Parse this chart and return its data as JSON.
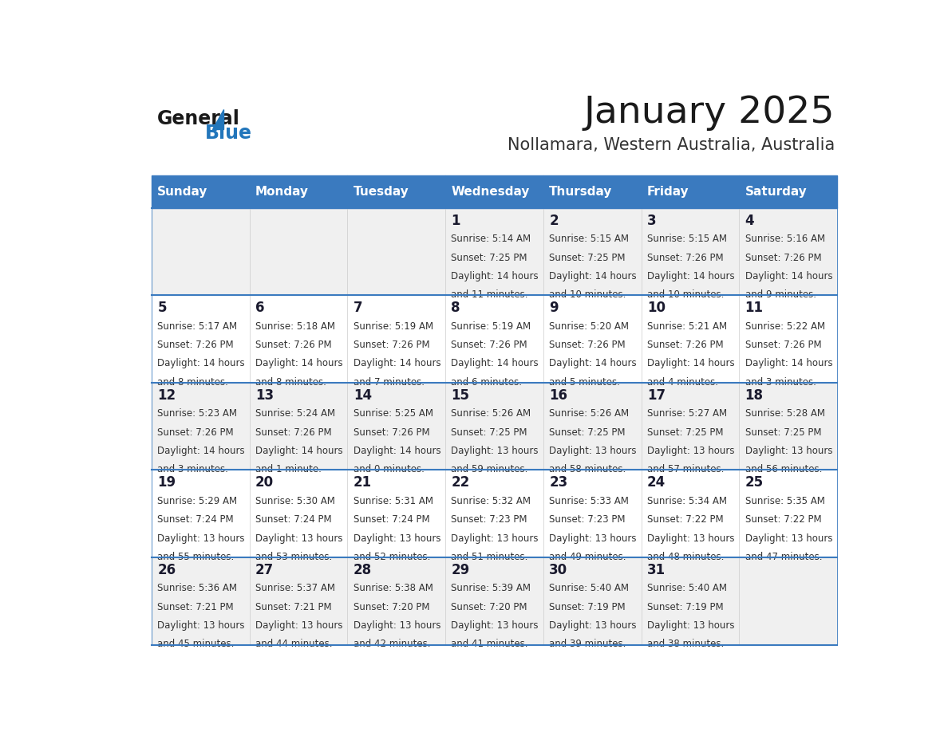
{
  "title": "January 2025",
  "subtitle": "Nollamara, Western Australia, Australia",
  "days_of_week": [
    "Sunday",
    "Monday",
    "Tuesday",
    "Wednesday",
    "Thursday",
    "Friday",
    "Saturday"
  ],
  "header_bg": "#3a7abf",
  "header_text_color": "#ffffff",
  "row_bg_odd": "#f0f0f0",
  "row_bg_even": "#ffffff",
  "cell_text_color": "#333333",
  "day_num_color": "#1a1a2e",
  "divider_color": "#3a7abf",
  "logo_color": "#2276bb",
  "calendar_data": [
    [
      null,
      null,
      null,
      {
        "day": 1,
        "sunrise": "5:14 AM",
        "sunset": "7:25 PM",
        "daylight_h": "14 hours",
        "daylight_m": "11 minutes"
      },
      {
        "day": 2,
        "sunrise": "5:15 AM",
        "sunset": "7:25 PM",
        "daylight_h": "14 hours",
        "daylight_m": "10 minutes"
      },
      {
        "day": 3,
        "sunrise": "5:15 AM",
        "sunset": "7:26 PM",
        "daylight_h": "14 hours",
        "daylight_m": "10 minutes"
      },
      {
        "day": 4,
        "sunrise": "5:16 AM",
        "sunset": "7:26 PM",
        "daylight_h": "14 hours",
        "daylight_m": "9 minutes"
      }
    ],
    [
      {
        "day": 5,
        "sunrise": "5:17 AM",
        "sunset": "7:26 PM",
        "daylight_h": "14 hours",
        "daylight_m": "8 minutes"
      },
      {
        "day": 6,
        "sunrise": "5:18 AM",
        "sunset": "7:26 PM",
        "daylight_h": "14 hours",
        "daylight_m": "8 minutes"
      },
      {
        "day": 7,
        "sunrise": "5:19 AM",
        "sunset": "7:26 PM",
        "daylight_h": "14 hours",
        "daylight_m": "7 minutes"
      },
      {
        "day": 8,
        "sunrise": "5:19 AM",
        "sunset": "7:26 PM",
        "daylight_h": "14 hours",
        "daylight_m": "6 minutes"
      },
      {
        "day": 9,
        "sunrise": "5:20 AM",
        "sunset": "7:26 PM",
        "daylight_h": "14 hours",
        "daylight_m": "5 minutes"
      },
      {
        "day": 10,
        "sunrise": "5:21 AM",
        "sunset": "7:26 PM",
        "daylight_h": "14 hours",
        "daylight_m": "4 minutes"
      },
      {
        "day": 11,
        "sunrise": "5:22 AM",
        "sunset": "7:26 PM",
        "daylight_h": "14 hours",
        "daylight_m": "3 minutes"
      }
    ],
    [
      {
        "day": 12,
        "sunrise": "5:23 AM",
        "sunset": "7:26 PM",
        "daylight_h": "14 hours",
        "daylight_m": "3 minutes"
      },
      {
        "day": 13,
        "sunrise": "5:24 AM",
        "sunset": "7:26 PM",
        "daylight_h": "14 hours",
        "daylight_m": "1 minute"
      },
      {
        "day": 14,
        "sunrise": "5:25 AM",
        "sunset": "7:26 PM",
        "daylight_h": "14 hours",
        "daylight_m": "0 minutes"
      },
      {
        "day": 15,
        "sunrise": "5:26 AM",
        "sunset": "7:25 PM",
        "daylight_h": "13 hours",
        "daylight_m": "59 minutes"
      },
      {
        "day": 16,
        "sunrise": "5:26 AM",
        "sunset": "7:25 PM",
        "daylight_h": "13 hours",
        "daylight_m": "58 minutes"
      },
      {
        "day": 17,
        "sunrise": "5:27 AM",
        "sunset": "7:25 PM",
        "daylight_h": "13 hours",
        "daylight_m": "57 minutes"
      },
      {
        "day": 18,
        "sunrise": "5:28 AM",
        "sunset": "7:25 PM",
        "daylight_h": "13 hours",
        "daylight_m": "56 minutes"
      }
    ],
    [
      {
        "day": 19,
        "sunrise": "5:29 AM",
        "sunset": "7:24 PM",
        "daylight_h": "13 hours",
        "daylight_m": "55 minutes"
      },
      {
        "day": 20,
        "sunrise": "5:30 AM",
        "sunset": "7:24 PM",
        "daylight_h": "13 hours",
        "daylight_m": "53 minutes"
      },
      {
        "day": 21,
        "sunrise": "5:31 AM",
        "sunset": "7:24 PM",
        "daylight_h": "13 hours",
        "daylight_m": "52 minutes"
      },
      {
        "day": 22,
        "sunrise": "5:32 AM",
        "sunset": "7:23 PM",
        "daylight_h": "13 hours",
        "daylight_m": "51 minutes"
      },
      {
        "day": 23,
        "sunrise": "5:33 AM",
        "sunset": "7:23 PM",
        "daylight_h": "13 hours",
        "daylight_m": "49 minutes"
      },
      {
        "day": 24,
        "sunrise": "5:34 AM",
        "sunset": "7:22 PM",
        "daylight_h": "13 hours",
        "daylight_m": "48 minutes"
      },
      {
        "day": 25,
        "sunrise": "5:35 AM",
        "sunset": "7:22 PM",
        "daylight_h": "13 hours",
        "daylight_m": "47 minutes"
      }
    ],
    [
      {
        "day": 26,
        "sunrise": "5:36 AM",
        "sunset": "7:21 PM",
        "daylight_h": "13 hours",
        "daylight_m": "45 minutes"
      },
      {
        "day": 27,
        "sunrise": "5:37 AM",
        "sunset": "7:21 PM",
        "daylight_h": "13 hours",
        "daylight_m": "44 minutes"
      },
      {
        "day": 28,
        "sunrise": "5:38 AM",
        "sunset": "7:20 PM",
        "daylight_h": "13 hours",
        "daylight_m": "42 minutes"
      },
      {
        "day": 29,
        "sunrise": "5:39 AM",
        "sunset": "7:20 PM",
        "daylight_h": "13 hours",
        "daylight_m": "41 minutes"
      },
      {
        "day": 30,
        "sunrise": "5:40 AM",
        "sunset": "7:19 PM",
        "daylight_h": "13 hours",
        "daylight_m": "39 minutes"
      },
      {
        "day": 31,
        "sunrise": "5:40 AM",
        "sunset": "7:19 PM",
        "daylight_h": "13 hours",
        "daylight_m": "38 minutes"
      },
      null
    ]
  ]
}
